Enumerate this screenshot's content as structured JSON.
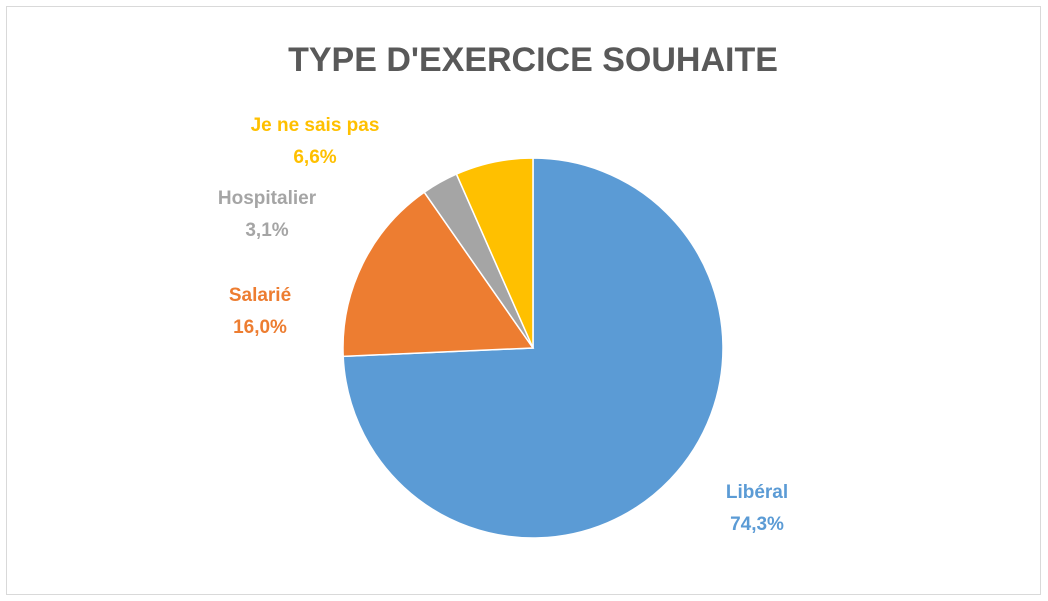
{
  "chart_data": {
    "type": "pie",
    "title": "TYPE D'EXERCICE SOUHAITE",
    "categories": [
      "Libéral",
      "Salarié",
      "Hospitalier",
      "Je ne sais pas"
    ],
    "values": [
      74.3,
      16.0,
      3.1,
      6.6
    ],
    "value_labels": [
      "74,3%",
      "16,0%",
      "3,1%",
      "6,6%"
    ],
    "colors": [
      "#5b9bd5",
      "#ed7d31",
      "#a5a5a5",
      "#ffc000"
    ]
  }
}
